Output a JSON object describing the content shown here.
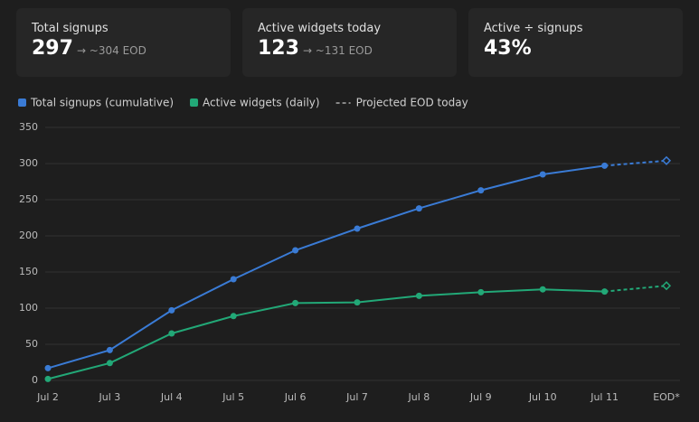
{
  "cards": [
    {
      "label": "Total signups",
      "value": "297",
      "note": "→ ~304 EOD"
    },
    {
      "label": "Active widgets today",
      "value": "123",
      "note": "→ ~131 EOD"
    },
    {
      "label": "Active ÷ signups",
      "value": "43%"
    }
  ],
  "chart_data": {
    "type": "line",
    "categories": [
      "Jul 2",
      "Jul 3",
      "Jul 4",
      "Jul 5",
      "Jul 6",
      "Jul 7",
      "Jul 8",
      "Jul 9",
      "Jul 10",
      "Jul 11",
      "EOD*"
    ],
    "series": [
      {
        "name": "Total signups (cumulative)",
        "color": "#3a7bd5",
        "values": [
          17,
          42,
          97,
          140,
          180,
          210,
          238,
          263,
          285,
          297,
          null
        ]
      },
      {
        "name": "Active widgets (daily)",
        "color": "#22a877",
        "values": [
          2,
          24,
          65,
          89,
          107,
          108,
          117,
          122,
          126,
          123,
          null
        ]
      }
    ],
    "projection": {
      "name": "Projected EOD today",
      "values": [
        304,
        131
      ]
    },
    "ylim": [
      0,
      350
    ],
    "yticks": [
      0,
      50,
      100,
      150,
      200,
      250,
      300,
      350
    ],
    "grid": true
  }
}
